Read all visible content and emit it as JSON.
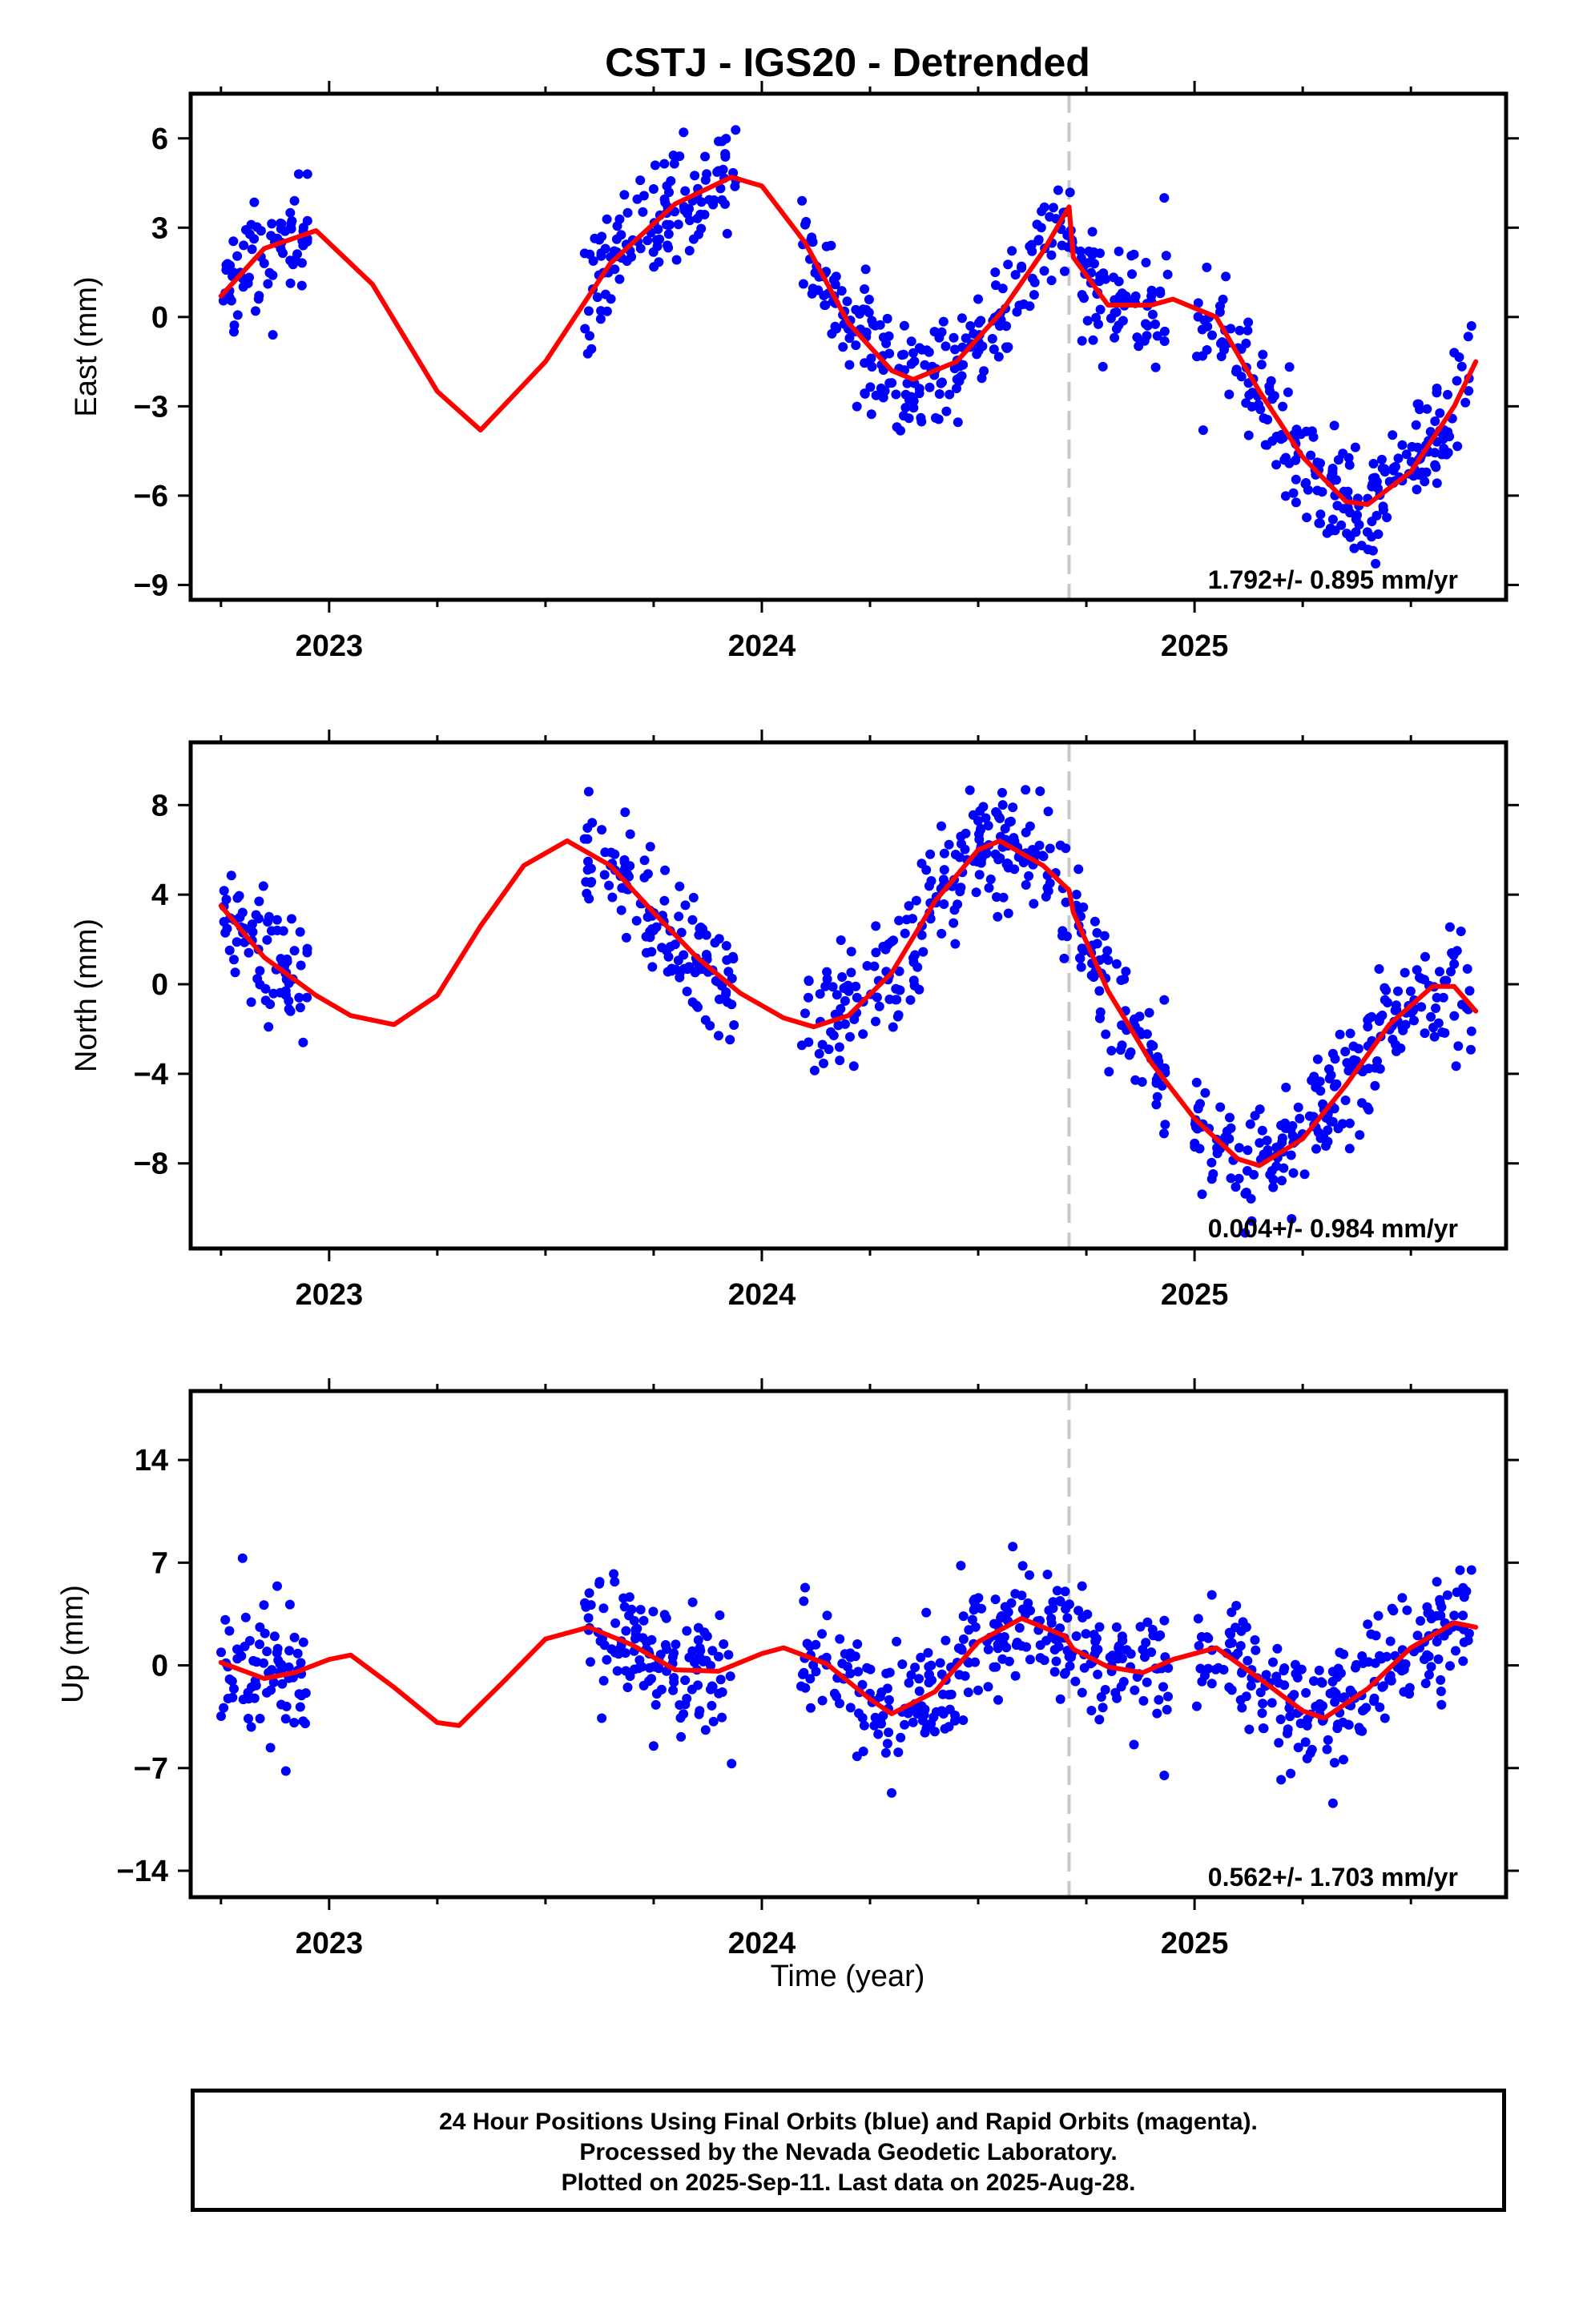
{
  "title": "CSTJ - IGS20 - Detrended",
  "xlabel": "Time (year)",
  "caption": [
    "24 Hour Positions Using Final Orbits (blue) and Rapid Orbits (magenta).",
    "Processed by the Nevada Geodetic Laboratory.",
    "Plotted on 2025-Sep-11. Last data on 2025-Aug-28."
  ],
  "colors": {
    "final_orbits": "#0000ff",
    "model": "#ff0000",
    "equipment_change": "#c8c8c8"
  },
  "chart_data": [
    {
      "type": "scatter",
      "ylabel": "East (mm)",
      "rate": "1.792+/- 0.895 mm/yr",
      "xlim": [
        2022.68,
        2025.72
      ],
      "ylim": [
        -9.5,
        7.5
      ],
      "yticks": [
        -9,
        -6,
        -3,
        0,
        3,
        6
      ],
      "xticks": [
        "2023",
        "2024",
        "2025"
      ],
      "equipment_change": 2024.71,
      "segments": [
        [
          2022.75,
          2022.95
        ],
        [
          2023.59,
          2023.94
        ],
        [
          2024.09,
          2024.71
        ],
        [
          2024.71,
          2024.94
        ],
        [
          2025.0,
          2025.64
        ]
      ],
      "model": [
        [
          2022.75,
          0.7
        ],
        [
          2022.85,
          2.3
        ],
        [
          2022.97,
          2.9
        ],
        [
          2023.1,
          1.1
        ],
        [
          2023.25,
          -2.5
        ],
        [
          2023.35,
          -3.8
        ],
        [
          2023.5,
          -1.5
        ],
        [
          2023.65,
          1.8
        ],
        [
          2023.8,
          3.8
        ],
        [
          2023.93,
          4.7
        ],
        [
          2024.0,
          4.4
        ],
        [
          2024.1,
          2.5
        ],
        [
          2024.2,
          -0.2
        ],
        [
          2024.3,
          -1.8
        ],
        [
          2024.35,
          -2.1
        ],
        [
          2024.45,
          -1.5
        ],
        [
          2024.55,
          0.1
        ],
        [
          2024.65,
          2.2
        ],
        [
          2024.71,
          3.7
        ],
        [
          2024.72,
          2.0
        ],
        [
          2024.8,
          0.4
        ],
        [
          2024.9,
          0.4
        ],
        [
          2024.95,
          0.6
        ],
        [
          2025.05,
          0.0
        ],
        [
          2025.15,
          -2.5
        ],
        [
          2025.25,
          -4.7
        ],
        [
          2025.35,
          -6.2
        ],
        [
          2025.4,
          -6.3
        ],
        [
          2025.5,
          -5.2
        ],
        [
          2025.6,
          -3.0
        ],
        [
          2025.65,
          -1.5
        ]
      ],
      "final_orbits": [
        [
          2022.76,
          0.8
        ],
        [
          2022.78,
          -0.5
        ],
        [
          2022.8,
          1.3
        ],
        [
          2022.82,
          3.1
        ],
        [
          2022.83,
          0.2
        ],
        [
          2022.85,
          1.8
        ],
        [
          2022.87,
          -0.6
        ],
        [
          2022.89,
          2.5
        ],
        [
          2022.91,
          1.9
        ],
        [
          2022.92,
          3.9
        ],
        [
          2022.94,
          2.4
        ],
        [
          2022.95,
          4.8
        ],
        [
          2023.6,
          0.2
        ],
        [
          2023.63,
          2.7
        ],
        [
          2023.66,
          1.6
        ],
        [
          2023.69,
          3.5
        ],
        [
          2023.72,
          2.3
        ],
        [
          2023.75,
          4.3
        ],
        [
          2023.78,
          3.1
        ],
        [
          2023.81,
          5.4
        ],
        [
          2023.84,
          3.9
        ],
        [
          2023.87,
          4.6
        ],
        [
          2023.9,
          5.9
        ],
        [
          2023.92,
          2.8
        ],
        [
          2024.1,
          3.1
        ],
        [
          2024.13,
          0.9
        ],
        [
          2024.16,
          2.4
        ],
        [
          2024.2,
          -0.4
        ],
        [
          2024.24,
          1.6
        ],
        [
          2024.28,
          -1.3
        ],
        [
          2024.31,
          -2.6
        ],
        [
          2024.34,
          -3.4
        ],
        [
          2024.37,
          -1.1
        ],
        [
          2024.41,
          -0.7
        ],
        [
          2024.45,
          -2.4
        ],
        [
          2024.5,
          0.6
        ],
        [
          2024.55,
          -0.3
        ],
        [
          2024.6,
          1.7
        ],
        [
          2024.64,
          2.6
        ],
        [
          2024.68,
          3.3
        ],
        [
          2024.74,
          -0.8
        ],
        [
          2024.78,
          1.2
        ],
        [
          2024.82,
          -0.4
        ],
        [
          2024.86,
          2.1
        ],
        [
          2024.9,
          0.7
        ],
        [
          2024.93,
          4.0
        ],
        [
          2025.02,
          -3.8
        ],
        [
          2025.08,
          -2.6
        ],
        [
          2025.12,
          -1.7
        ],
        [
          2025.16,
          -3.4
        ],
        [
          2025.2,
          -4.1
        ],
        [
          2025.24,
          -4.6
        ],
        [
          2025.28,
          -5.3
        ],
        [
          2025.32,
          -6.8
        ],
        [
          2025.36,
          -7.4
        ],
        [
          2025.4,
          -6.1
        ],
        [
          2025.44,
          -5.2
        ],
        [
          2025.48,
          -4.3
        ],
        [
          2025.52,
          -3.1
        ],
        [
          2025.56,
          -2.4
        ],
        [
          2025.6,
          -1.2
        ],
        [
          2025.64,
          -0.3
        ]
      ]
    },
    {
      "type": "scatter",
      "ylabel": "North (mm)",
      "rate": "0.004+/- 0.984 mm/yr",
      "xlim": [
        2022.68,
        2025.72
      ],
      "ylim": [
        -11.8,
        10.8
      ],
      "yticks": [
        -8,
        -4,
        0,
        4,
        8
      ],
      "xticks": [
        "2023",
        "2024",
        "2025"
      ],
      "equipment_change": 2024.71,
      "segments": [
        [
          2022.75,
          2022.95
        ],
        [
          2023.59,
          2023.94
        ],
        [
          2024.09,
          2024.71
        ],
        [
          2024.71,
          2024.94
        ],
        [
          2025.0,
          2025.64
        ]
      ],
      "model": [
        [
          2022.75,
          3.5
        ],
        [
          2022.85,
          1.2
        ],
        [
          2022.97,
          -0.5
        ],
        [
          2023.05,
          -1.4
        ],
        [
          2023.15,
          -1.8
        ],
        [
          2023.25,
          -0.5
        ],
        [
          2023.35,
          2.6
        ],
        [
          2023.45,
          5.3
        ],
        [
          2023.55,
          6.4
        ],
        [
          2023.65,
          5.3
        ],
        [
          2023.75,
          3.2
        ],
        [
          2023.85,
          1.2
        ],
        [
          2023.95,
          -0.4
        ],
        [
          2024.05,
          -1.5
        ],
        [
          2024.12,
          -1.9
        ],
        [
          2024.2,
          -1.4
        ],
        [
          2024.3,
          0.5
        ],
        [
          2024.4,
          3.7
        ],
        [
          2024.5,
          6.0
        ],
        [
          2024.55,
          6.4
        ],
        [
          2024.65,
          5.3
        ],
        [
          2024.71,
          4.2
        ],
        [
          2024.72,
          3.2
        ],
        [
          2024.8,
          -0.3
        ],
        [
          2024.9,
          -3.5
        ],
        [
          2025.0,
          -6.0
        ],
        [
          2025.1,
          -7.8
        ],
        [
          2025.15,
          -8.1
        ],
        [
          2025.25,
          -6.9
        ],
        [
          2025.35,
          -4.5
        ],
        [
          2025.45,
          -1.8
        ],
        [
          2025.55,
          -0.1
        ],
        [
          2025.6,
          -0.1
        ],
        [
          2025.65,
          -1.2
        ]
      ],
      "final_orbits": [
        [
          2022.76,
          2.3
        ],
        [
          2022.78,
          1.1
        ],
        [
          2022.8,
          3.2
        ],
        [
          2022.82,
          -0.8
        ],
        [
          2022.84,
          0.6
        ],
        [
          2022.86,
          -1.9
        ],
        [
          2022.88,
          2.4
        ],
        [
          2022.9,
          -0.3
        ],
        [
          2022.92,
          1.5
        ],
        [
          2022.94,
          -2.6
        ],
        [
          2023.6,
          8.6
        ],
        [
          2023.63,
          6.9
        ],
        [
          2023.66,
          5.8
        ],
        [
          2023.69,
          4.9
        ],
        [
          2023.72,
          3.6
        ],
        [
          2023.75,
          2.4
        ],
        [
          2023.78,
          1.5
        ],
        [
          2023.81,
          0.3
        ],
        [
          2023.84,
          -0.8
        ],
        [
          2023.87,
          -1.6
        ],
        [
          2023.9,
          -2.3
        ],
        [
          2023.93,
          -0.9
        ],
        [
          2024.1,
          -1.3
        ],
        [
          2024.14,
          -2.7
        ],
        [
          2024.18,
          -3.4
        ],
        [
          2024.22,
          -0.6
        ],
        [
          2024.26,
          0.8
        ],
        [
          2024.3,
          1.9
        ],
        [
          2024.34,
          3.5
        ],
        [
          2024.38,
          5.1
        ],
        [
          2024.42,
          4.4
        ],
        [
          2024.46,
          6.6
        ],
        [
          2024.5,
          7.3
        ],
        [
          2024.54,
          5.8
        ],
        [
          2024.58,
          7.9
        ],
        [
          2024.62,
          5.6
        ],
        [
          2024.66,
          4.3
        ],
        [
          2024.69,
          6.2
        ],
        [
          2024.74,
          1.6
        ],
        [
          2024.78,
          -0.3
        ],
        [
          2024.82,
          0.9
        ],
        [
          2024.86,
          -1.6
        ],
        [
          2024.9,
          -2.7
        ],
        [
          2024.93,
          -0.7
        ],
        [
          2025.04,
          -8.7
        ],
        [
          2025.08,
          -6.9
        ],
        [
          2025.12,
          -9.3
        ],
        [
          2025.16,
          -7.6
        ],
        [
          2025.2,
          -6.3
        ],
        [
          2025.24,
          -5.5
        ],
        [
          2025.28,
          -4.6
        ],
        [
          2025.32,
          -3.1
        ],
        [
          2025.36,
          -2.2
        ],
        [
          2025.4,
          -1.6
        ],
        [
          2025.44,
          -0.7
        ],
        [
          2025.48,
          -1.9
        ],
        [
          2025.52,
          0.3
        ],
        [
          2025.56,
          -0.6
        ],
        [
          2025.6,
          0.9
        ],
        [
          2025.64,
          -2.1
        ]
      ]
    },
    {
      "type": "scatter",
      "ylabel": "Up (mm)",
      "rate": "0.562+/- 1.703 mm/yr",
      "xlim": [
        2022.68,
        2025.72
      ],
      "ylim": [
        -15.8,
        18.7
      ],
      "yticks": [
        -14,
        -7,
        0,
        7,
        14
      ],
      "xticks": [
        "2023",
        "2024",
        "2025"
      ],
      "equipment_change": 2024.71,
      "segments": [
        [
          2022.75,
          2022.95
        ],
        [
          2023.59,
          2023.94
        ],
        [
          2024.09,
          2024.71
        ],
        [
          2024.71,
          2024.94
        ],
        [
          2025.0,
          2025.64
        ]
      ],
      "model": [
        [
          2022.75,
          0.2
        ],
        [
          2022.85,
          -0.9
        ],
        [
          2022.92,
          -0.5
        ],
        [
          2023.0,
          0.4
        ],
        [
          2023.05,
          0.7
        ],
        [
          2023.15,
          -1.5
        ],
        [
          2023.25,
          -3.9
        ],
        [
          2023.3,
          -4.1
        ],
        [
          2023.4,
          -1.2
        ],
        [
          2023.5,
          1.8
        ],
        [
          2023.6,
          2.6
        ],
        [
          2023.7,
          1.4
        ],
        [
          2023.8,
          -0.3
        ],
        [
          2023.9,
          -0.4
        ],
        [
          2024.0,
          0.8
        ],
        [
          2024.05,
          1.2
        ],
        [
          2024.15,
          0.1
        ],
        [
          2024.25,
          -2.3
        ],
        [
          2024.3,
          -3.3
        ],
        [
          2024.4,
          -1.8
        ],
        [
          2024.5,
          1.6
        ],
        [
          2024.6,
          3.2
        ],
        [
          2024.7,
          2.0
        ],
        [
          2024.72,
          1.1
        ],
        [
          2024.8,
          -0.1
        ],
        [
          2024.88,
          -0.5
        ],
        [
          2024.95,
          0.4
        ],
        [
          2025.05,
          1.2
        ],
        [
          2025.15,
          -0.9
        ],
        [
          2025.25,
          -3.1
        ],
        [
          2025.3,
          -3.6
        ],
        [
          2025.4,
          -1.6
        ],
        [
          2025.5,
          1.2
        ],
        [
          2025.6,
          2.9
        ],
        [
          2025.65,
          2.6
        ]
      ],
      "final_orbits": [
        [
          2022.76,
          3.1
        ],
        [
          2022.78,
          -1.6
        ],
        [
          2022.8,
          7.3
        ],
        [
          2022.82,
          -4.2
        ],
        [
          2022.84,
          2.6
        ],
        [
          2022.86,
          -0.5
        ],
        [
          2022.88,
          5.4
        ],
        [
          2022.9,
          -7.2
        ],
        [
          2022.92,
          1.9
        ],
        [
          2022.94,
          -3.8
        ],
        [
          2023.6,
          2.4
        ],
        [
          2023.63,
          -3.6
        ],
        [
          2023.66,
          5.7
        ],
        [
          2023.69,
          -1.5
        ],
        [
          2023.72,
          3.8
        ],
        [
          2023.75,
          -5.5
        ],
        [
          2023.78,
          1.1
        ],
        [
          2023.81,
          -2.7
        ],
        [
          2023.84,
          4.3
        ],
        [
          2023.87,
          -4.4
        ],
        [
          2023.9,
          0.6
        ],
        [
          2023.93,
          -6.7
        ],
        [
          2024.1,
          5.3
        ],
        [
          2024.14,
          -2.4
        ],
        [
          2024.18,
          1.8
        ],
        [
          2024.22,
          -6.2
        ],
        [
          2024.26,
          -4.1
        ],
        [
          2024.3,
          -8.7
        ],
        [
          2024.34,
          -1.2
        ],
        [
          2024.38,
          3.6
        ],
        [
          2024.42,
          -3.3
        ],
        [
          2024.46,
          6.8
        ],
        [
          2024.5,
          -1.7
        ],
        [
          2024.54,
          4.5
        ],
        [
          2024.58,
          8.1
        ],
        [
          2024.62,
          0.4
        ],
        [
          2024.66,
          6.2
        ],
        [
          2024.69,
          -2.3
        ],
        [
          2024.74,
          5.4
        ],
        [
          2024.78,
          -3.7
        ],
        [
          2024.82,
          2.6
        ],
        [
          2024.86,
          -5.4
        ],
        [
          2024.9,
          0.9
        ],
        [
          2024.93,
          -7.5
        ],
        [
          2025.04,
          4.8
        ],
        [
          2025.08,
          -1.5
        ],
        [
          2025.12,
          2.6
        ],
        [
          2025.16,
          -4.3
        ],
        [
          2025.2,
          -7.8
        ],
        [
          2025.24,
          -5.6
        ],
        [
          2025.28,
          -2.8
        ],
        [
          2025.32,
          -9.4
        ],
        [
          2025.36,
          -1.7
        ],
        [
          2025.4,
          2.8
        ],
        [
          2025.44,
          -3.6
        ],
        [
          2025.48,
          4.6
        ],
        [
          2025.52,
          1.2
        ],
        [
          2025.56,
          5.7
        ],
        [
          2025.6,
          3.4
        ],
        [
          2025.64,
          6.5
        ]
      ]
    }
  ]
}
